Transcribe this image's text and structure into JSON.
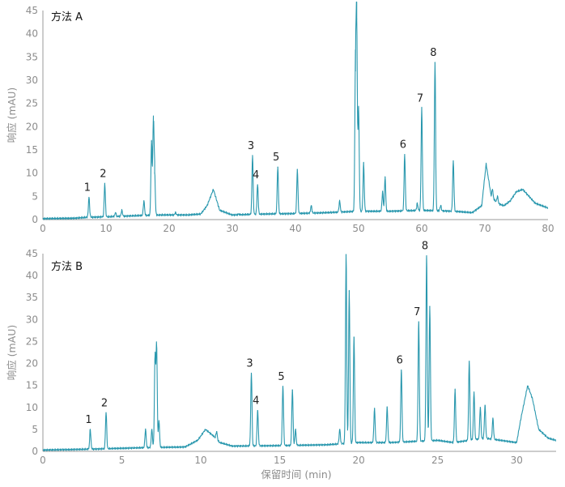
{
  "colors": {
    "trace": "#2a98ae",
    "axis": "#9a9a9a",
    "tick_text": "#8c8c8c"
  },
  "chart_data": [
    {
      "type": "line",
      "title": "方法 A",
      "xlabel": "",
      "ylabel": "响应 (mAU)",
      "xlim": [
        0,
        80
      ],
      "ylim": [
        0,
        45
      ],
      "xticks": [
        0,
        10,
        20,
        30,
        40,
        50,
        60,
        70,
        80
      ],
      "yticks": [
        0,
        5,
        10,
        15,
        20,
        25,
        30,
        35,
        40,
        45
      ],
      "grid": false,
      "baseline": [
        [
          0,
          0.2
        ],
        [
          5,
          0.3
        ],
        [
          7,
          0.5
        ],
        [
          10,
          0.6
        ],
        [
          14,
          0.8
        ],
        [
          16,
          0.9
        ],
        [
          19,
          1.0
        ],
        [
          23,
          1.0
        ],
        [
          25,
          1.2
        ],
        [
          26,
          3.0
        ],
        [
          27,
          6.5
        ],
        [
          28,
          2.0
        ],
        [
          30,
          1.0
        ],
        [
          35,
          1.2
        ],
        [
          40,
          1.3
        ],
        [
          45,
          1.5
        ],
        [
          50,
          1.8
        ],
        [
          55,
          1.8
        ],
        [
          60,
          2.0
        ],
        [
          65,
          1.8
        ],
        [
          68,
          1.5
        ],
        [
          69.5,
          3.0
        ],
        [
          70.2,
          12.0
        ],
        [
          71,
          5.0
        ],
        [
          72,
          3.5
        ],
        [
          73,
          3.0
        ],
        [
          74,
          4.0
        ],
        [
          75,
          6.0
        ],
        [
          76,
          6.5
        ],
        [
          77,
          5.0
        ],
        [
          78,
          3.5
        ],
        [
          79,
          3.0
        ],
        [
          80,
          2.5
        ]
      ],
      "series": [
        {
          "values": [
            [
              7.3,
              4.8
            ],
            [
              9.8,
              7.8
            ],
            [
              11.5,
              1.5
            ],
            [
              12.5,
              2.0
            ],
            [
              16.0,
              4.0
            ],
            [
              17.2,
              16.8
            ],
            [
              17.5,
              21.0
            ],
            [
              17.7,
              10.0
            ],
            [
              21.0,
              1.5
            ],
            [
              31.0,
              1.2
            ],
            [
              33.2,
              13.8
            ],
            [
              34.0,
              7.5
            ],
            [
              37.2,
              11.3
            ],
            [
              40.3,
              10.8
            ],
            [
              42.5,
              3.0
            ],
            [
              47.0,
              4.0
            ],
            [
              49.5,
              32.0
            ],
            [
              49.7,
              43.2
            ],
            [
              50.0,
              24.0
            ],
            [
              50.8,
              12.2
            ],
            [
              53.8,
              6.0
            ],
            [
              54.2,
              9.2
            ],
            [
              57.3,
              14.0
            ],
            [
              59.3,
              3.5
            ],
            [
              60.0,
              24.0
            ],
            [
              62.1,
              33.8
            ],
            [
              63.0,
              3.0
            ],
            [
              65.0,
              12.6
            ],
            [
              71.2,
              6.5
            ],
            [
              72.0,
              5.0
            ]
          ]
        }
      ],
      "peak_labels": [
        {
          "text": "1",
          "x": 7.3,
          "y": 4.8
        },
        {
          "text": "2",
          "x": 9.8,
          "y": 7.8
        },
        {
          "text": "3",
          "x": 33.2,
          "y": 13.8
        },
        {
          "text": "4",
          "x": 34.0,
          "y": 7.5
        },
        {
          "text": "5",
          "x": 37.2,
          "y": 11.3
        },
        {
          "text": "6",
          "x": 57.3,
          "y": 14.0
        },
        {
          "text": "7",
          "x": 60.0,
          "y": 24.0
        },
        {
          "text": "8",
          "x": 62.1,
          "y": 33.8
        }
      ]
    },
    {
      "type": "line",
      "title": "方法 B",
      "xlabel": "保留时间 (min)",
      "ylabel": "响应 (mAU)",
      "xlim": [
        0,
        32.5
      ],
      "ylim": [
        0,
        45
      ],
      "xticks": [
        0,
        5,
        10,
        15,
        20,
        25,
        30
      ],
      "yticks": [
        0,
        5,
        10,
        15,
        20,
        25,
        30,
        35,
        40,
        45
      ],
      "grid": false,
      "baseline": [
        [
          0,
          0.3
        ],
        [
          3,
          0.5
        ],
        [
          6,
          0.8
        ],
        [
          9,
          1.0
        ],
        [
          9.8,
          2.5
        ],
        [
          10.3,
          5.0
        ],
        [
          10.8,
          3.5
        ],
        [
          11.2,
          2.0
        ],
        [
          12,
          1.2
        ],
        [
          15,
          1.3
        ],
        [
          18,
          1.5
        ],
        [
          20,
          2.0
        ],
        [
          22,
          2.0
        ],
        [
          25,
          2.5
        ],
        [
          26,
          2.0
        ],
        [
          28,
          3.0
        ],
        [
          29,
          2.5
        ],
        [
          30,
          2.0
        ],
        [
          30.3,
          8.0
        ],
        [
          30.7,
          15.0
        ],
        [
          31.0,
          12.0
        ],
        [
          31.4,
          5.0
        ],
        [
          32.0,
          3.0
        ],
        [
          32.5,
          2.5
        ]
      ],
      "series": [
        {
          "values": [
            [
              3.0,
              5.0
            ],
            [
              4.0,
              8.8
            ],
            [
              6.5,
              5.0
            ],
            [
              6.9,
              5.0
            ],
            [
              7.1,
              21.5
            ],
            [
              7.2,
              24.0
            ],
            [
              7.35,
              7.0
            ],
            [
              11.0,
              4.5
            ],
            [
              13.2,
              17.8
            ],
            [
              13.6,
              9.3
            ],
            [
              15.2,
              14.8
            ],
            [
              15.8,
              14.0
            ],
            [
              16.0,
              5.0
            ],
            [
              18.8,
              5.0
            ],
            [
              19.2,
              44.8
            ],
            [
              19.4,
              36.5
            ],
            [
              19.7,
              26.0
            ],
            [
              21.0,
              9.7
            ],
            [
              21.8,
              10.0
            ],
            [
              22.7,
              18.5
            ],
            [
              23.8,
              29.5
            ],
            [
              24.3,
              44.5
            ],
            [
              24.5,
              33.0
            ],
            [
              26.1,
              14.0
            ],
            [
              27.0,
              20.5
            ],
            [
              27.3,
              13.5
            ],
            [
              27.7,
              10.0
            ],
            [
              28.0,
              10.5
            ],
            [
              28.5,
              7.5
            ]
          ]
        }
      ],
      "peak_labels": [
        {
          "text": "1",
          "x": 3.0,
          "y": 5.0
        },
        {
          "text": "2",
          "x": 4.0,
          "y": 8.8
        },
        {
          "text": "3",
          "x": 13.2,
          "y": 17.8
        },
        {
          "text": "4",
          "x": 13.6,
          "y": 9.3
        },
        {
          "text": "5",
          "x": 15.2,
          "y": 14.8
        },
        {
          "text": "6",
          "x": 22.7,
          "y": 18.5
        },
        {
          "text": "7",
          "x": 23.8,
          "y": 29.5
        },
        {
          "text": "8",
          "x": 24.3,
          "y": 44.5
        }
      ]
    }
  ]
}
